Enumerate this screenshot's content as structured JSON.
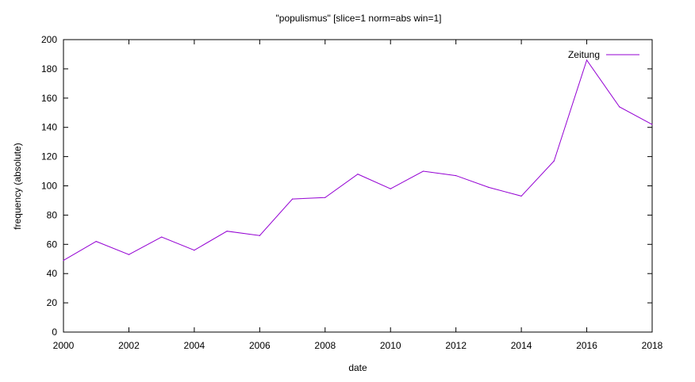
{
  "chart_data": {
    "type": "line",
    "title": "\"populismus\" [slice=1 norm=abs win=1]",
    "xlabel": "date",
    "ylabel": "frequency (absolute)",
    "xlim": [
      2000,
      2018
    ],
    "ylim": [
      0,
      200
    ],
    "xticks": [
      2000,
      2002,
      2004,
      2006,
      2008,
      2010,
      2012,
      2014,
      2016,
      2018
    ],
    "yticks": [
      0,
      20,
      40,
      60,
      80,
      100,
      120,
      140,
      160,
      180,
      200
    ],
    "grid": false,
    "legend_position": "top-right",
    "series": [
      {
        "name": "Zeitung",
        "color": "#9400d3",
        "x": [
          2000,
          2001,
          2002,
          2003,
          2004,
          2005,
          2006,
          2007,
          2008,
          2009,
          2010,
          2011,
          2012,
          2013,
          2014,
          2015,
          2016,
          2017,
          2018
        ],
        "values": [
          49,
          62,
          53,
          65,
          56,
          69,
          66,
          91,
          92,
          108,
          98,
          110,
          107,
          99,
          93,
          117,
          186,
          154,
          142
        ]
      }
    ]
  }
}
